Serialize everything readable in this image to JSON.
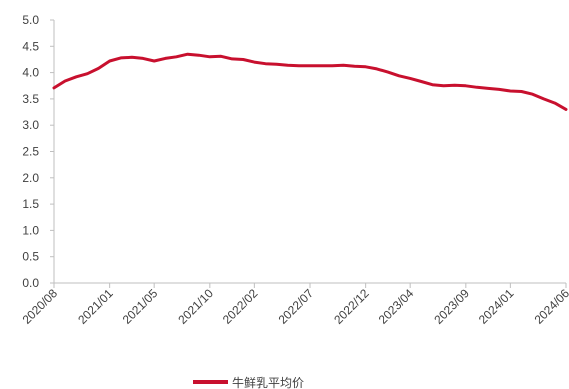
{
  "chart_data": {
    "type": "line",
    "title": "",
    "xlabel": "",
    "ylabel": "",
    "ylim": [
      0.0,
      5.0
    ],
    "y_ticks": [
      "0.0",
      "0.5",
      "1.0",
      "1.5",
      "2.0",
      "2.5",
      "3.0",
      "3.5",
      "4.0",
      "4.5",
      "5.0"
    ],
    "x_ticks": [
      "2020/08",
      "2021/01",
      "2021/05",
      "2021/10",
      "2022/02",
      "2022/07",
      "2022/12",
      "2023/04",
      "2023/09",
      "2024/01",
      "2024/06"
    ],
    "grid": false,
    "legend_position": "bottom",
    "series": [
      {
        "name": "牛鲜乳平均价",
        "color": "#C8102E",
        "x": [
          "2020/08",
          "2020/09",
          "2020/10",
          "2020/11",
          "2020/12",
          "2021/01",
          "2021/02",
          "2021/03",
          "2021/04",
          "2021/05",
          "2021/06",
          "2021/07",
          "2021/08",
          "2021/09",
          "2021/10",
          "2021/11",
          "2021/12",
          "2022/01",
          "2022/02",
          "2022/03",
          "2022/04",
          "2022/05",
          "2022/06",
          "2022/07",
          "2022/08",
          "2022/09",
          "2022/10",
          "2022/11",
          "2022/12",
          "2023/01",
          "2023/02",
          "2023/03",
          "2023/04",
          "2023/05",
          "2023/06",
          "2023/07",
          "2023/08",
          "2023/09",
          "2023/10",
          "2023/11",
          "2023/12",
          "2024/01",
          "2024/02",
          "2024/03",
          "2024/04",
          "2024/05",
          "2024/06"
        ],
        "values": [
          3.71,
          3.84,
          3.92,
          3.98,
          4.08,
          4.22,
          4.28,
          4.29,
          4.27,
          4.22,
          4.27,
          4.3,
          4.35,
          4.33,
          4.3,
          4.31,
          4.26,
          4.25,
          4.2,
          4.17,
          4.16,
          4.14,
          4.13,
          4.13,
          4.13,
          4.13,
          4.14,
          4.12,
          4.11,
          4.07,
          4.01,
          3.94,
          3.89,
          3.83,
          3.77,
          3.75,
          3.76,
          3.75,
          3.72,
          3.7,
          3.68,
          3.65,
          3.64,
          3.59,
          3.5,
          3.42,
          3.3
        ]
      }
    ]
  }
}
